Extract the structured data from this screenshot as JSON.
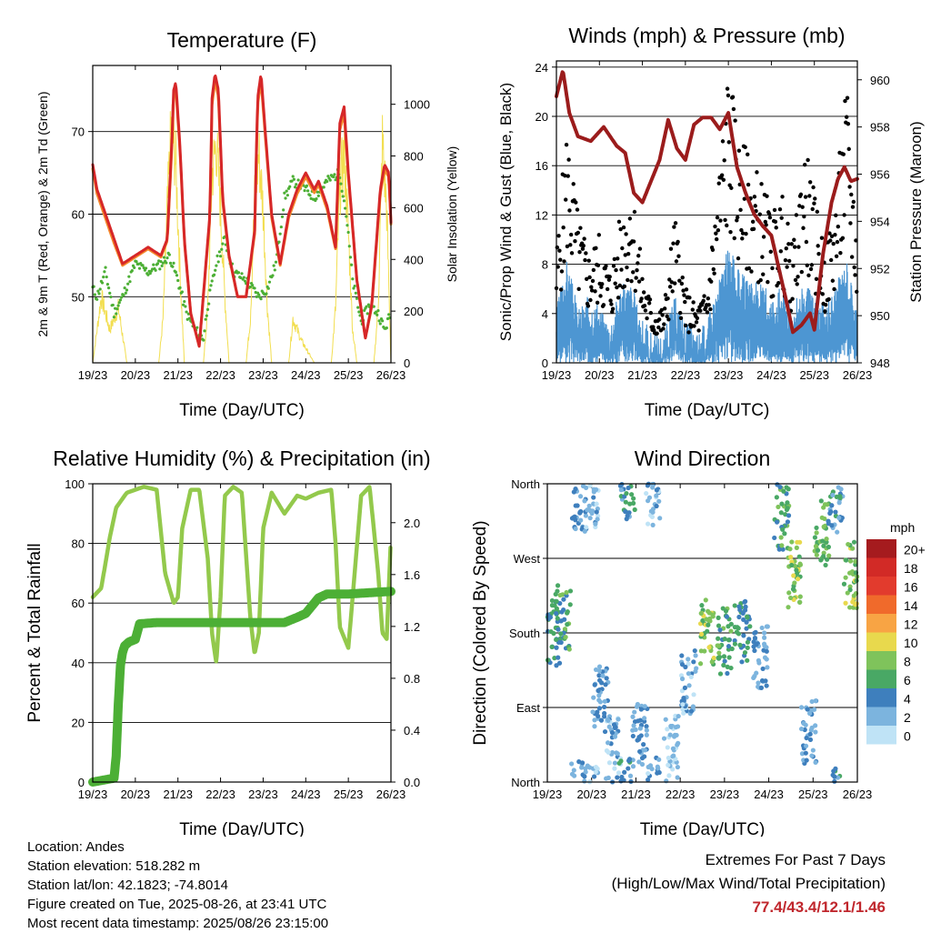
{
  "chart_data": [
    {
      "type": "line",
      "title": "Temperature (F)",
      "xlabel": "Time (Day/UTC)",
      "ylabel": "2m & 9m T (Red, Orange) & 2m Td (Green)",
      "y2label": "Solar Insolation (Yellow)",
      "x_ticks": [
        "19/23",
        "20/23",
        "21/23",
        "22/23",
        "23/23",
        "24/23",
        "25/23",
        "26/23"
      ],
      "ylim": [
        42,
        78
      ],
      "y_ticks": [
        50,
        60,
        70
      ],
      "y2lim": [
        0,
        1150
      ],
      "y2_ticks": [
        0,
        200,
        400,
        600,
        800,
        1000
      ],
      "grid": true,
      "series": [
        {
          "name": "2m T",
          "color": "#d62728",
          "x": [
            0,
            0.1,
            0.3,
            0.5,
            0.7,
            1,
            1.3,
            1.6,
            1.75,
            1.85,
            1.9,
            1.95,
            2.05,
            2.15,
            2.3,
            2.5,
            2.75,
            2.8,
            2.87,
            2.95,
            3.05,
            3.2,
            3.4,
            3.6,
            3.8,
            3.87,
            3.95,
            4.05,
            4.2,
            4.4,
            4.6,
            4.8,
            5,
            5.2,
            5.3,
            5.5,
            5.7,
            5.8,
            5.9,
            6,
            6.2,
            6.4,
            6.55,
            6.75,
            6.85,
            6.95,
            7
          ],
          "values": [
            66,
            63,
            60,
            57,
            54,
            55,
            56,
            55,
            57,
            68,
            75,
            76,
            68,
            57,
            48,
            44,
            60,
            74,
            77,
            75,
            62,
            55,
            50,
            50,
            58,
            74,
            77,
            70,
            60,
            54,
            60,
            63,
            65,
            63,
            64,
            61,
            56,
            71,
            73,
            65,
            52,
            45,
            49,
            63,
            66,
            65,
            59
          ]
        },
        {
          "name": "9m T",
          "color": "#f5892b",
          "x": [
            0,
            0.1,
            0.3,
            0.5,
            0.7,
            1,
            1.3,
            1.6,
            1.75,
            1.85,
            1.9,
            1.95,
            2.05,
            2.15,
            2.3,
            2.5,
            2.75,
            2.8,
            2.87,
            2.95,
            3.05,
            3.2,
            3.4,
            3.6,
            3.8,
            3.87,
            3.95,
            4.05,
            4.2,
            4.4,
            4.6,
            4.8,
            5,
            5.2,
            5.3,
            5.5,
            5.7,
            5.8,
            5.9,
            6,
            6.2,
            6.4,
            6.55,
            6.75,
            6.85,
            6.95,
            7
          ],
          "values": [
            65.5,
            62.5,
            59.5,
            56.5,
            53.8,
            54.8,
            55.8,
            54.8,
            56.8,
            67.3,
            74.2,
            75.2,
            67.5,
            56.8,
            48,
            44,
            59.5,
            73.2,
            76.2,
            74.2,
            61.5,
            54.8,
            50,
            50,
            57.6,
            73.2,
            76.2,
            69.5,
            59.6,
            53.8,
            59.6,
            62.5,
            64.5,
            62.6,
            63.6,
            60.6,
            55.8,
            70.2,
            72.2,
            64.5,
            52,
            45,
            48.8,
            62.5,
            65.4,
            64.5,
            58.8
          ]
        },
        {
          "name": "2m Td",
          "color": "#4caf35",
          "x": [
            0,
            0.1,
            0.3,
            0.5,
            0.7,
            1,
            1.3,
            1.6,
            1.8,
            2,
            2.2,
            2.4,
            2.6,
            2.7,
            2.9,
            3.1,
            3.3,
            3.6,
            3.9,
            4.1,
            4.3,
            4.5,
            4.7,
            5,
            5.2,
            5.5,
            5.8,
            5.95,
            6.1,
            6.3,
            6.5,
            6.7,
            6.85,
            7
          ],
          "values": [
            51,
            50,
            53,
            48,
            50,
            54,
            53,
            54,
            55,
            52,
            48,
            46,
            45,
            49,
            54,
            57,
            53,
            52,
            50,
            51,
            54,
            62,
            64,
            63,
            62,
            64,
            65,
            60,
            52,
            47,
            49,
            48,
            46,
            48
          ]
        },
        {
          "name": "Solar Insolation",
          "color": "#f2de50",
          "axis": "y2",
          "x": [
            0,
            0.2,
            0.4,
            0.6,
            0.8,
            1,
            1.25,
            1.35,
            1.55,
            1.65,
            1.75,
            1.85,
            1.95,
            2.05,
            2.15,
            2.3,
            2.6,
            2.7,
            2.8,
            2.9,
            3,
            3.1,
            3.2,
            3.6,
            3.7,
            3.8,
            3.9,
            4,
            4.1,
            4.2,
            4.6,
            4.7,
            4.8,
            4.9,
            5.05,
            5.2,
            5.6,
            5.7,
            5.8,
            5.9,
            6,
            6.1,
            6.2,
            6.6,
            6.7,
            6.8,
            6.9,
            7
          ],
          "values": [
            0,
            300,
            150,
            250,
            0,
            0,
            0,
            0,
            0,
            200,
            700,
            1100,
            900,
            400,
            0,
            0,
            0,
            250,
            850,
            1000,
            700,
            300,
            0,
            0,
            200,
            750,
            950,
            700,
            250,
            0,
            0,
            200,
            150,
            100,
            50,
            0,
            0,
            250,
            800,
            950,
            600,
            150,
            0,
            0,
            250,
            1000,
            700,
            0
          ]
        }
      ]
    },
    {
      "type": "line",
      "title": "Winds (mph) & Pressure (mb)",
      "xlabel": "Time (Day/UTC)",
      "ylabel": "Sonic/Prop Wind & Gust (Blue, Black)",
      "y2label": "Station Pressure (Maroon)",
      "x_ticks": [
        "19/23",
        "20/23",
        "21/23",
        "22/23",
        "23/23",
        "24/23",
        "25/23",
        "26/23"
      ],
      "ylim": [
        0,
        24.5
      ],
      "y_ticks": [
        0,
        4,
        8,
        12,
        16,
        20,
        24
      ],
      "y2lim": [
        948,
        960.8
      ],
      "y2_ticks": [
        948,
        950,
        952,
        954,
        956,
        958,
        960
      ],
      "grid": true,
      "series": [
        {
          "name": "Pressure",
          "color": "#9b1c1c",
          "axis": "y2",
          "x": [
            0,
            0.15,
            0.3,
            0.5,
            0.8,
            1.1,
            1.4,
            1.6,
            1.8,
            2,
            2.2,
            2.4,
            2.6,
            2.8,
            3,
            3.2,
            3.4,
            3.6,
            3.8,
            4,
            4.2,
            4.4,
            4.6,
            4.8,
            5,
            5.2,
            5.35,
            5.5,
            5.7,
            5.9,
            6,
            6.2,
            6.4,
            6.55,
            6.7,
            6.85,
            7
          ],
          "values": [
            959.3,
            960.4,
            958.6,
            957.6,
            957.4,
            958,
            957.2,
            956.9,
            955.2,
            954.8,
            955.7,
            956.6,
            958.3,
            957.1,
            956.6,
            958.1,
            958.4,
            958.4,
            957.9,
            958.6,
            956.3,
            955.2,
            954.3,
            953.8,
            953.4,
            951.8,
            950.6,
            949.3,
            949.6,
            950.1,
            949.4,
            952.6,
            954.8,
            955.8,
            956.3,
            955.7,
            955.8
          ]
        },
        {
          "name": "Wind",
          "color": "#4d96d2",
          "x": [
            0,
            0.25,
            0.5,
            0.75,
            1,
            1.25,
            1.5,
            1.75,
            2,
            2.25,
            2.5,
            2.75,
            3,
            3.25,
            3.5,
            3.75,
            4,
            4.25,
            4.5,
            4.75,
            5,
            5.25,
            5.5,
            5.75,
            6,
            6.25,
            6.5,
            6.75,
            7
          ],
          "values": [
            3,
            7,
            3,
            4,
            3,
            2,
            5,
            5,
            2,
            1,
            1,
            4,
            2,
            1,
            2,
            5,
            8,
            6,
            5,
            5,
            4,
            5,
            3,
            5,
            4,
            3,
            5,
            7,
            3
          ]
        },
        {
          "name": "Gust",
          "color": "#000000",
          "marker": "dot",
          "x": [
            0,
            0.25,
            0.5,
            0.75,
            1,
            1.25,
            1.5,
            1.75,
            2,
            2.25,
            2.5,
            2.75,
            3,
            3.25,
            3.5,
            3.75,
            4,
            4.25,
            4.5,
            4.75,
            5,
            5.25,
            5.5,
            5.75,
            6,
            6.25,
            6.5,
            6.75,
            7
          ],
          "values": [
            6,
            13,
            8,
            6,
            7,
            5,
            8,
            10,
            5,
            3,
            3,
            8,
            4,
            3,
            4,
            10,
            16,
            12,
            11,
            10,
            8,
            9,
            6,
            12,
            9,
            6,
            9,
            15,
            7
          ]
        }
      ]
    },
    {
      "type": "line",
      "title": "Relative Humidity (%) & Precipitation (in)",
      "xlabel": "Time (Day/UTC)",
      "ylabel": "Percent & Total Rainfall",
      "x_ticks": [
        "19/23",
        "20/23",
        "21/23",
        "22/23",
        "23/23",
        "24/23",
        "25/23",
        "26/23"
      ],
      "ylim": [
        0,
        100
      ],
      "y_ticks": [
        0,
        20,
        40,
        60,
        80,
        100
      ],
      "y2lim": [
        0,
        2.3
      ],
      "y2_ticks": [
        "0.0",
        "0.4",
        "0.8",
        "1.2",
        "1.6",
        "2.0"
      ],
      "grid": true,
      "series": [
        {
          "name": "Relative Humidity",
          "color": "#93c94c",
          "x": [
            0,
            0.2,
            0.4,
            0.55,
            0.8,
            1.2,
            1.5,
            1.7,
            1.9,
            2,
            2.1,
            2.3,
            2.5,
            2.7,
            2.8,
            2.9,
            3,
            3.1,
            3.3,
            3.5,
            3.7,
            3.8,
            3.9,
            4,
            4.2,
            4.5,
            4.8,
            5,
            5.3,
            5.6,
            5.7,
            5.8,
            6,
            6.3,
            6.5,
            6.7,
            6.8,
            6.9,
            7
          ],
          "values": [
            62,
            65,
            82,
            92,
            97,
            99,
            98,
            70,
            60,
            62,
            85,
            98,
            98,
            75,
            50,
            40,
            62,
            96,
            99,
            97,
            55,
            43,
            50,
            85,
            97,
            90,
            96,
            95,
            97,
            98,
            80,
            52,
            45,
            96,
            99,
            70,
            50,
            48,
            82
          ]
        },
        {
          "name": "Total Rainfall",
          "color": "#4caf35",
          "axis": "y2",
          "x": [
            0,
            0.5,
            0.55,
            0.6,
            0.65,
            0.7,
            0.75,
            0.85,
            1,
            1.1,
            1.5,
            2,
            3,
            4.5,
            4.8,
            5,
            5.3,
            5.5,
            6,
            7
          ],
          "values": [
            0,
            0.03,
            0.2,
            0.6,
            0.9,
            1.0,
            1.05,
            1.08,
            1.1,
            1.22,
            1.23,
            1.23,
            1.23,
            1.23,
            1.27,
            1.3,
            1.42,
            1.45,
            1.45,
            1.47
          ]
        }
      ]
    },
    {
      "type": "scatter",
      "title": "Wind Direction",
      "xlabel": "Time (Day/UTC)",
      "ylabel": "Direction (Colored By Speed)",
      "x_ticks": [
        "19/23",
        "20/23",
        "21/23",
        "22/23",
        "23/23",
        "24/23",
        "25/23",
        "26/23"
      ],
      "y_ticks": [
        "North",
        "East",
        "South",
        "West",
        "North"
      ],
      "ylim": [
        0,
        360
      ],
      "legend_title": "mph",
      "legend_labels": [
        "20+",
        "18",
        "16",
        "14",
        "12",
        "10",
        "8",
        "6",
        "4",
        "2",
        "0"
      ],
      "legend_colors": [
        "#a51b1e",
        "#d22a26",
        "#e23b2d",
        "#f06a2b",
        "#f8a444",
        "#e8d94d",
        "#7fc35b",
        "#49a865",
        "#3e7fbd",
        "#7cb4de",
        "#bfe3f6"
      ],
      "clusters": [
        {
          "x": 0.15,
          "dir": 180,
          "speed": 5
        },
        {
          "x": 0.35,
          "dir": 200,
          "speed": 6
        },
        {
          "x": 0.7,
          "dir": 345,
          "speed": 3
        },
        {
          "x": 1.0,
          "dir": 340,
          "speed": 2
        },
        {
          "x": 1.2,
          "dir": 100,
          "speed": 3
        },
        {
          "x": 1.5,
          "dir": 40,
          "speed": 2
        },
        {
          "x": 1.8,
          "dir": 355,
          "speed": 4
        },
        {
          "x": 2.1,
          "dir": 60,
          "speed": 3
        },
        {
          "x": 2.4,
          "dir": 350,
          "speed": 2
        },
        {
          "x": 2.8,
          "dir": 40,
          "speed": 1
        },
        {
          "x": 3.2,
          "dir": 120,
          "speed": 2
        },
        {
          "x": 3.6,
          "dir": 180,
          "speed": 8
        },
        {
          "x": 4.0,
          "dir": 170,
          "speed": 6
        },
        {
          "x": 4.4,
          "dir": 180,
          "speed": 5
        },
        {
          "x": 4.8,
          "dir": 150,
          "speed": 3
        },
        {
          "x": 5.3,
          "dir": 320,
          "speed": 6
        },
        {
          "x": 5.6,
          "dir": 250,
          "speed": 8
        },
        {
          "x": 5.9,
          "dir": 60,
          "speed": 3
        },
        {
          "x": 6.2,
          "dir": 300,
          "speed": 7
        },
        {
          "x": 6.5,
          "dir": 340,
          "speed": 4
        },
        {
          "x": 6.85,
          "dir": 250,
          "speed": 8
        }
      ]
    }
  ],
  "info": {
    "location": "Location: Andes",
    "elevation": "Station elevation: 518.282 m",
    "latlon": "Station lat/lon: 42.1823; -74.8014",
    "created": "Figure created on Tue, 2025-08-26, at 23:41 UTC",
    "recent": "Most recent data timestamp: 2025/08/26 23:15:00"
  },
  "extremes": {
    "line1": "Extremes For Past 7 Days",
    "line2": "(High/Low/Max Wind/Total Precipitation)",
    "values": "77.4/43.4/12.1/1.46"
  }
}
